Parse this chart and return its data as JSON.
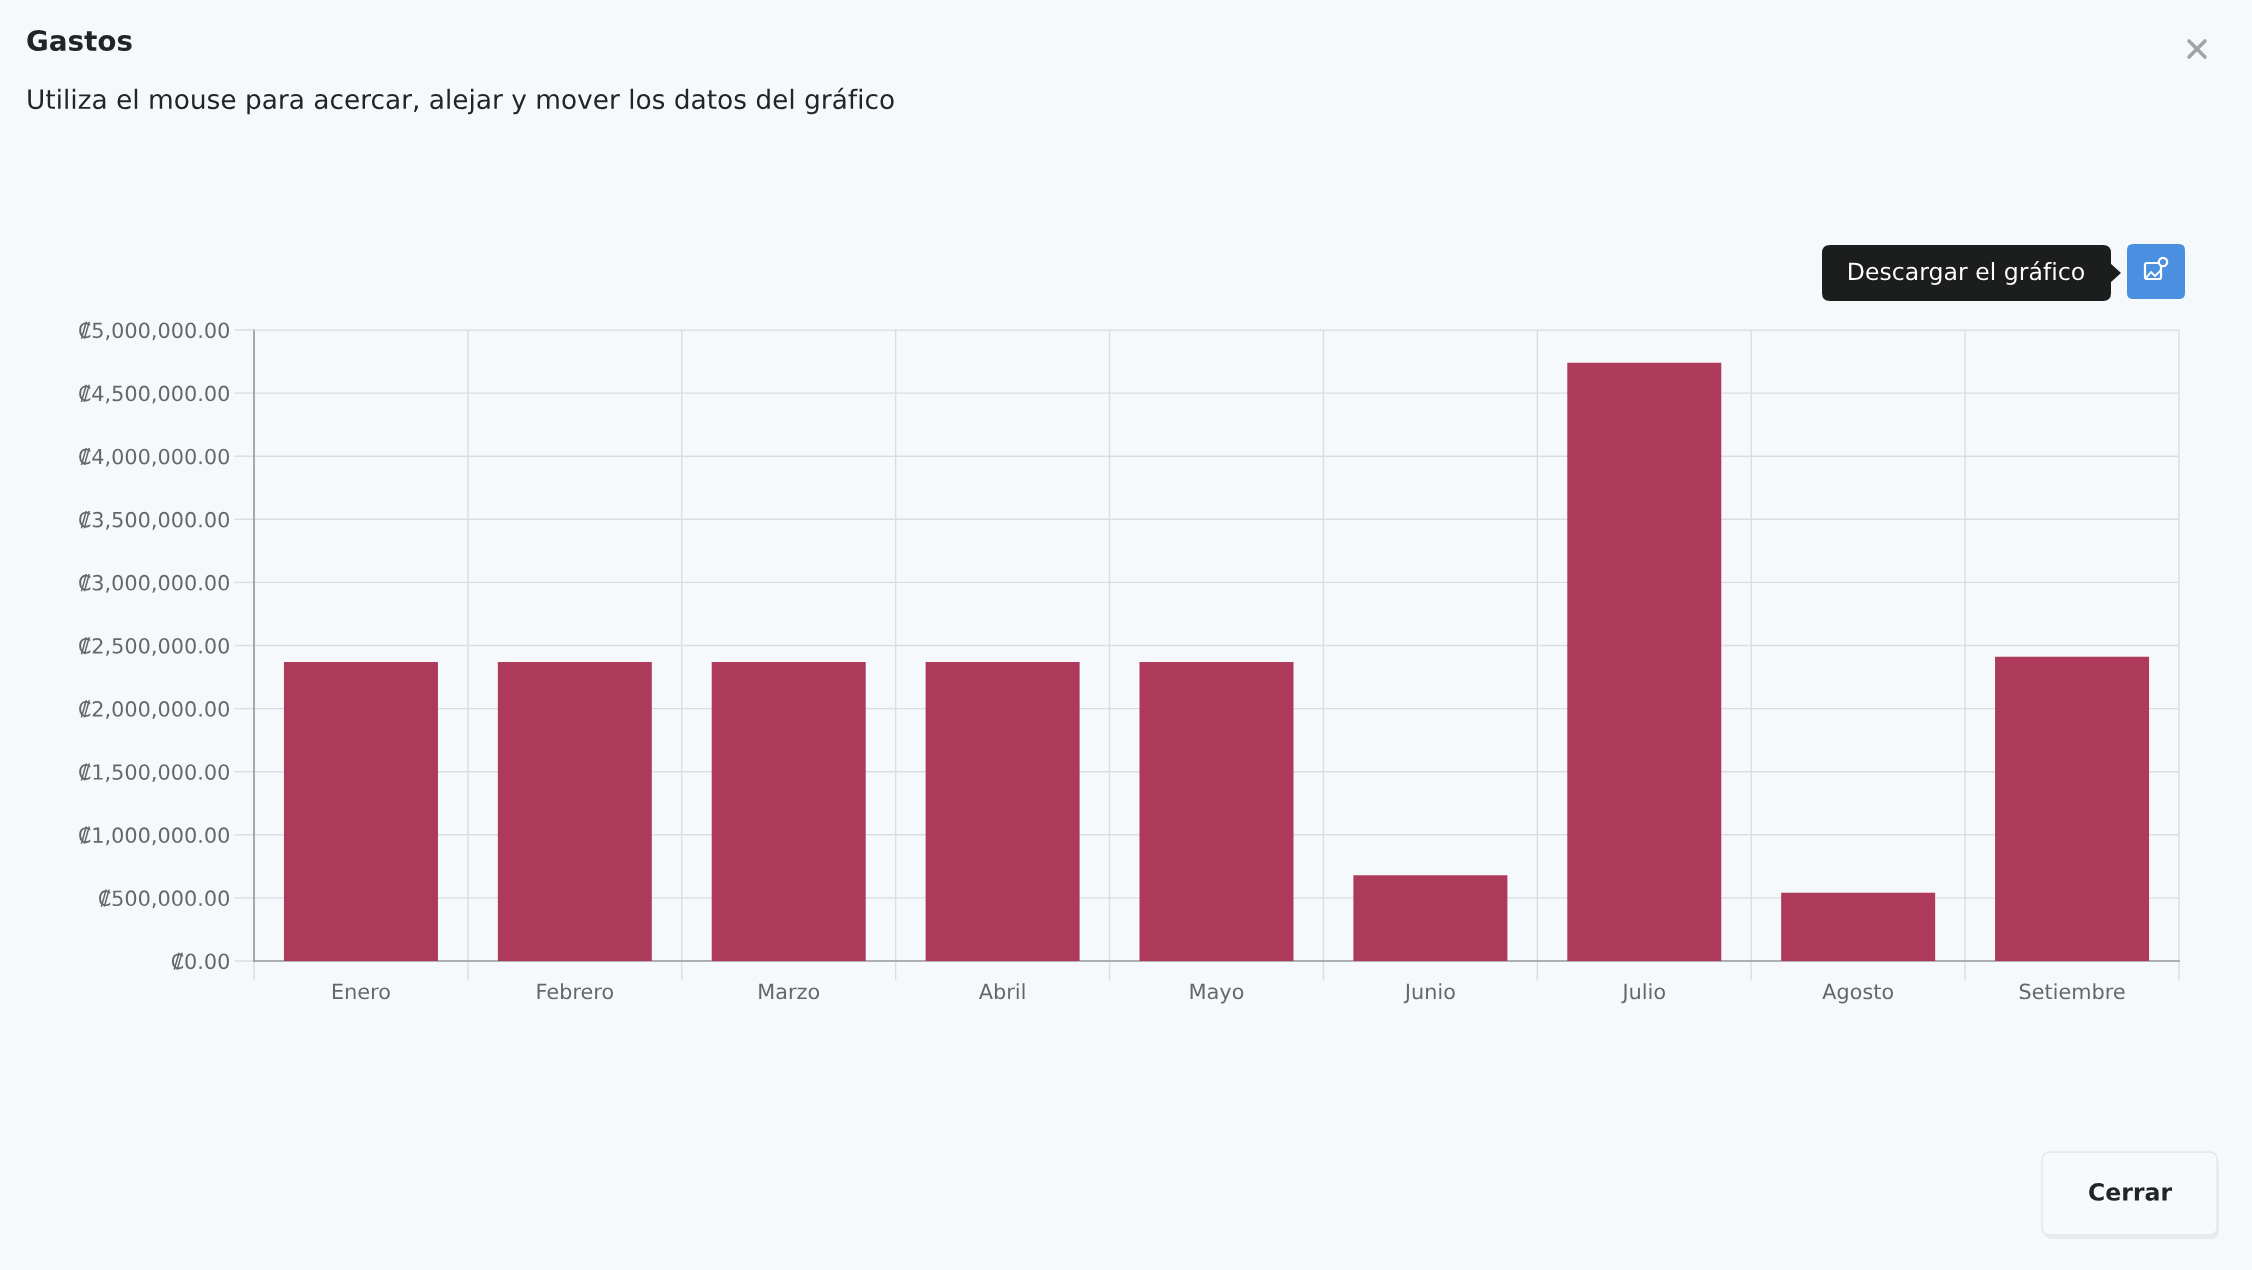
{
  "chart_data": {
    "type": "bar",
    "title": "Gastos",
    "subtitle": "Utiliza el mouse para acercar, alejar y mover los datos del gráfico",
    "categories": [
      "Enero",
      "Febrero",
      "Marzo",
      "Abril",
      "Mayo",
      "Junio",
      "Julio",
      "Agosto",
      "Setiembre"
    ],
    "values": [
      2370000,
      2370000,
      2370000,
      2370000,
      2370000,
      680000,
      4740000,
      540000,
      2410000
    ],
    "color": "#ad3a5b",
    "ylim": [
      0,
      5000000
    ],
    "yticks": [
      {
        "value": 0,
        "label": "₡0.00"
      },
      {
        "value": 500000,
        "label": "₡500,000.00"
      },
      {
        "value": 1000000,
        "label": "₡1,000,000.00"
      },
      {
        "value": 1500000,
        "label": "₡1,500,000.00"
      },
      {
        "value": 2000000,
        "label": "₡2,000,000.00"
      },
      {
        "value": 2500000,
        "label": "₡2,500,000.00"
      },
      {
        "value": 3000000,
        "label": "₡3,000,000.00"
      },
      {
        "value": 3500000,
        "label": "₡3,500,000.00"
      },
      {
        "value": 4000000,
        "label": "₡4,000,000.00"
      },
      {
        "value": 4500000,
        "label": "₡4,500,000.00"
      },
      {
        "value": 5000000,
        "label": "₡5,000,000.00"
      }
    ],
    "grid": true,
    "annotations": [
      "Descargar el gráfico",
      "Cerrar"
    ]
  }
}
